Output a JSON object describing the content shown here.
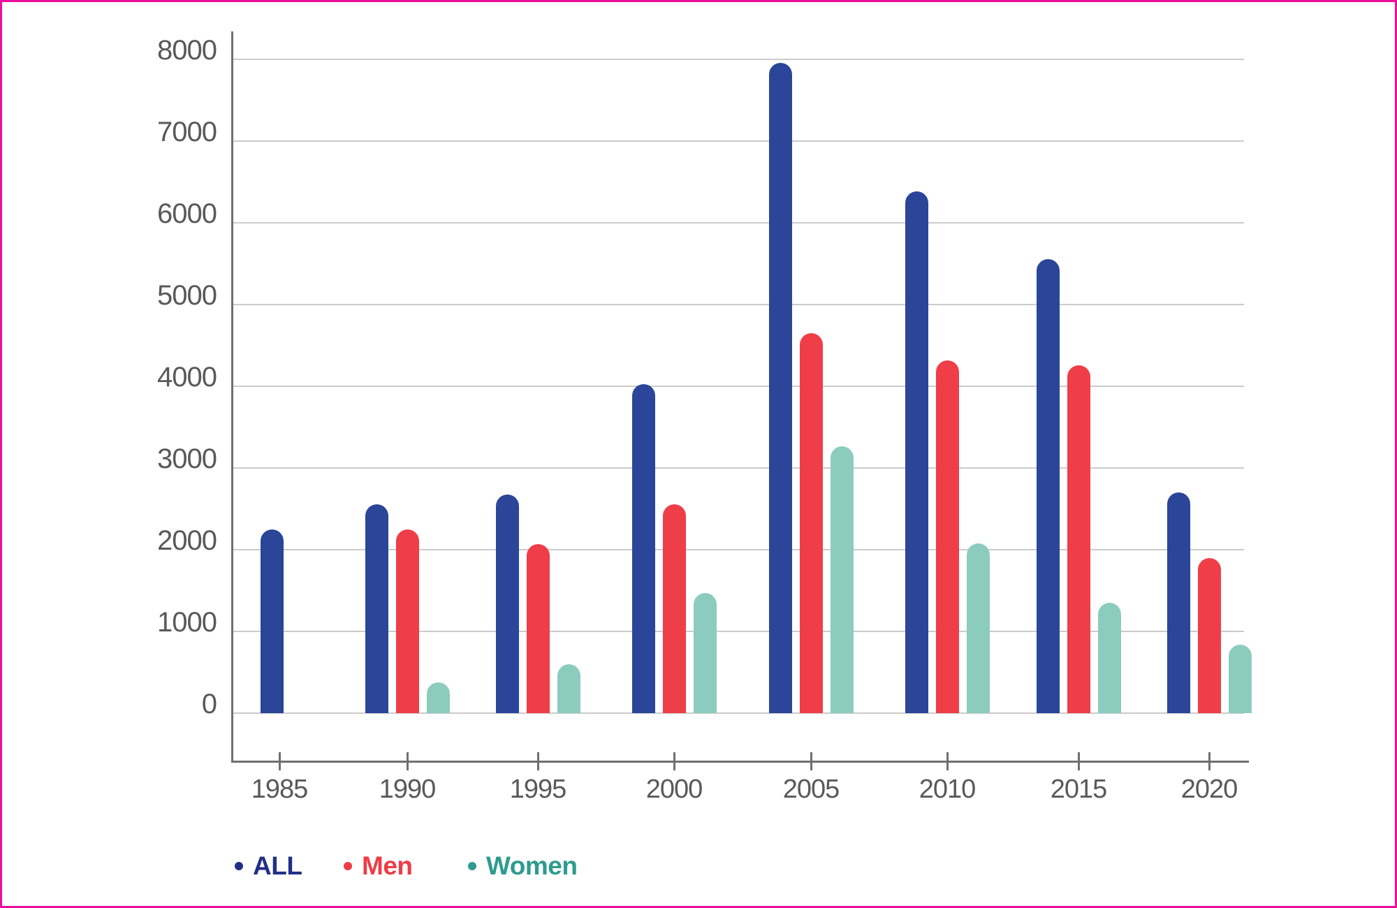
{
  "colors": {
    "border": "#EC0F9C",
    "axis_line": "#6F6F6F",
    "grid_line": "#CBCBCB",
    "tick_text": "#595959",
    "background": "#FFFFFF"
  },
  "legend": {
    "marker": "dot",
    "position": "bottom-left"
  },
  "chart_data": {
    "type": "bar",
    "title": "",
    "xlabel": "",
    "ylabel": "",
    "categories": [
      "1985",
      "1990",
      "1995",
      "2000",
      "2005",
      "2010",
      "2015",
      "2020"
    ],
    "series": [
      {
        "name": "ALL",
        "color": "#2B4598",
        "legend_text_color": "#222F87",
        "values": [
          2250,
          2560,
          2680,
          4030,
          7960,
          6390,
          5560,
          2700
        ]
      },
      {
        "name": "Men",
        "color": "#EF3E47",
        "legend_text_color": "#EE3C46",
        "values": [
          null,
          2250,
          2070,
          2560,
          4650,
          4320,
          4260,
          1900
        ]
      },
      {
        "name": "Women",
        "color": "#8CCCBE",
        "legend_text_color": "#2D9B8D",
        "values": [
          null,
          380,
          600,
          1470,
          3270,
          2080,
          1350,
          840
        ]
      }
    ],
    "ylim": [
      0,
      8000
    ],
    "ytick_labels": [
      "0",
      "1000",
      "2000",
      "3000",
      "4000",
      "5000",
      "6000",
      "7000",
      "8000"
    ],
    "grid": "horizontal",
    "legend_position": "bottom-left"
  }
}
